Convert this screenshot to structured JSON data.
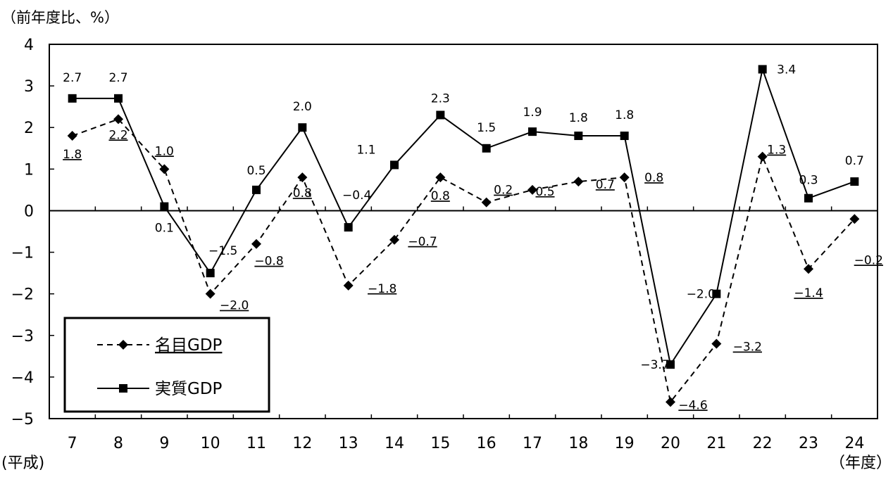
{
  "chart_data": {
    "type": "line",
    "y_unit_label": "（前年度比、%）",
    "x_era_label": "(平成)",
    "x_unit_label": "（年度）",
    "categories": [
      "7",
      "8",
      "9",
      "10",
      "11",
      "12",
      "13",
      "14",
      "15",
      "16",
      "17",
      "18",
      "19",
      "20",
      "21",
      "22",
      "23",
      "24"
    ],
    "yticks": [
      "4",
      "3",
      "2",
      "1",
      "0",
      "−1",
      "−2",
      "−3",
      "−4",
      "−5"
    ],
    "ylim": [
      -5,
      4
    ],
    "grid": false,
    "legend_position": "bottom-left",
    "series": [
      {
        "name": "名目GDP",
        "style": "dashed",
        "marker": "diamond",
        "values": [
          1.8,
          2.2,
          1.0,
          -2.0,
          -0.8,
          0.8,
          -1.8,
          -0.7,
          0.8,
          0.2,
          0.5,
          0.7,
          0.8,
          -4.6,
          -3.2,
          1.3,
          -1.4,
          -0.2
        ],
        "labels": [
          "1.8",
          "2.2",
          "1.0",
          "−2.0",
          "−0.8",
          "0.8",
          "−1.8",
          "−0.7",
          "0.8",
          "0.2",
          "0.5",
          "0.7",
          "0.8",
          "−4.6",
          "−3.2",
          "1.3",
          "−1.4",
          "−0.2"
        ]
      },
      {
        "name": "実質GDP",
        "style": "solid",
        "marker": "square",
        "values": [
          2.7,
          2.7,
          0.1,
          -1.5,
          0.5,
          2.0,
          -0.4,
          1.1,
          2.3,
          1.5,
          1.9,
          1.8,
          1.8,
          -3.7,
          -2.0,
          3.4,
          0.3,
          0.7
        ],
        "labels": [
          "2.7",
          "2.7",
          "0.1",
          "−1.5",
          "0.5",
          "2.0",
          "−0.4",
          "1.1",
          "2.3",
          "1.5",
          "1.9",
          "1.8",
          "1.8",
          "−3.7",
          "−2.0",
          "3.4",
          "0.3",
          "0.7"
        ]
      }
    ]
  }
}
